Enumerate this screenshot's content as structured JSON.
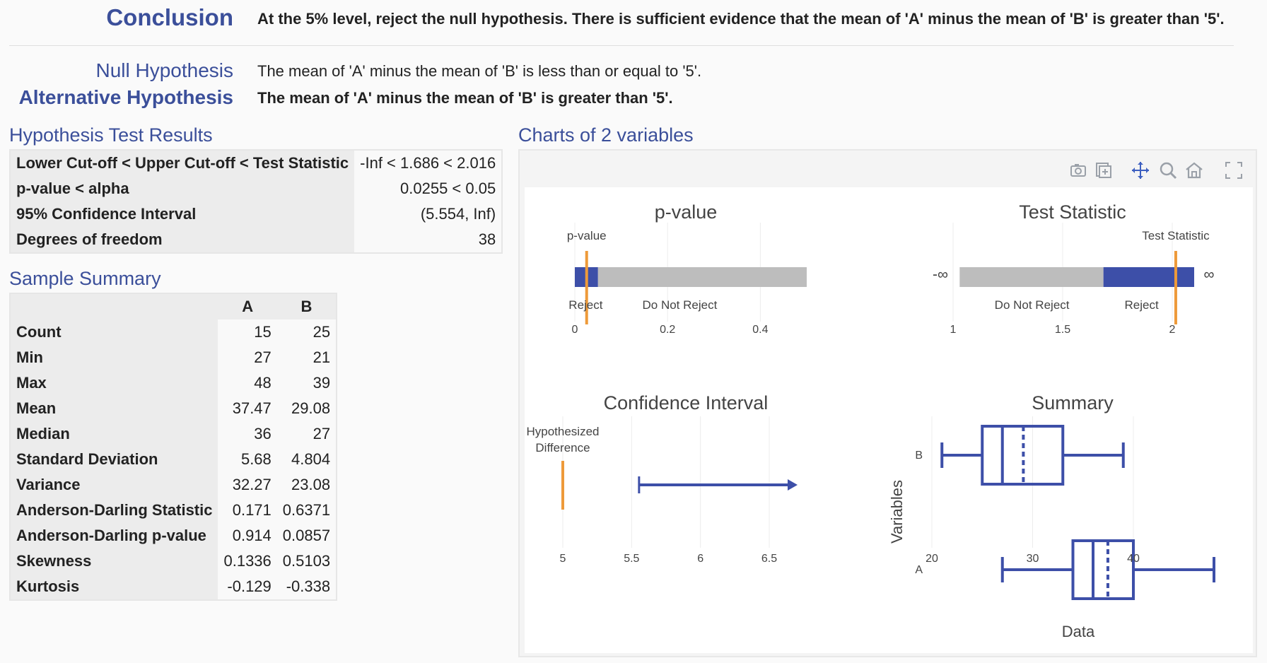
{
  "header": {
    "conclusion_label": "Conclusion",
    "conclusion_text": "At the 5% level, reject the null hypothesis. There is sufficient evidence that the mean of 'A' minus the mean of 'B' is greater than '5'.",
    "null_label": "Null Hypothesis",
    "null_text": "The mean of 'A' minus the mean of 'B' is less than or equal to '5'.",
    "alt_label": "Alternative Hypothesis",
    "alt_text": "The mean of 'A' minus the mean of 'B' is greater than '5'."
  },
  "hypothesis_results": {
    "title": "Hypothesis Test Results",
    "rows": [
      {
        "label": "Lower Cut-off < Upper Cut-off < Test Statistic",
        "value": "-Inf < 1.686 < 2.016"
      },
      {
        "label": "p-value < alpha",
        "value": "0.0255 < 0.05"
      },
      {
        "label": "95% Confidence Interval",
        "value": "(5.554, Inf)"
      },
      {
        "label": "Degrees of freedom",
        "value": "38"
      }
    ]
  },
  "sample_summary": {
    "title": "Sample Summary",
    "columns": [
      "A",
      "B"
    ],
    "rows": [
      {
        "label": "Count",
        "a": "15",
        "b": "25"
      },
      {
        "label": "Min",
        "a": "27",
        "b": "21"
      },
      {
        "label": "Max",
        "a": "48",
        "b": "39"
      },
      {
        "label": "Mean",
        "a": "37.47",
        "b": "29.08"
      },
      {
        "label": "Median",
        "a": "36",
        "b": "27"
      },
      {
        "label": "Standard Deviation",
        "a": "5.68",
        "b": "4.804"
      },
      {
        "label": "Variance",
        "a": "32.27",
        "b": "23.08"
      },
      {
        "label": "Anderson-Darling Statistic",
        "a": "0.171",
        "b": "0.6371"
      },
      {
        "label": "Anderson-Darling p-value",
        "a": "0.914",
        "b": "0.0857"
      },
      {
        "label": "Skewness",
        "a": "0.1336",
        "b": "0.5103"
      },
      {
        "label": "Kurtosis",
        "a": "-0.129",
        "b": "-0.338"
      }
    ]
  },
  "charts_panel": {
    "title": "Charts of 2 variables",
    "toolbar_icons": [
      "camera-icon",
      "copy-icon",
      "pan-icon",
      "zoom-icon",
      "home-icon",
      "fullscreen-icon"
    ]
  },
  "colors": {
    "accent": "#3b4f9a",
    "reject": "#3d4fa8",
    "do_not_reject": "#bdbdbd",
    "marker": "#ee9a3a"
  },
  "chart_data": [
    {
      "type": "bar",
      "title": "p-value",
      "annotation": "p-value",
      "region_labels": [
        "Reject",
        "Do Not Reject"
      ],
      "regions": [
        {
          "name": "Reject",
          "from": 0,
          "to": 0.05
        },
        {
          "name": "Do Not Reject",
          "from": 0.05,
          "to": 0.5
        }
      ],
      "marker": 0.0255,
      "xticks": [
        0,
        0.2,
        0.4
      ],
      "xtick_labels": [
        "0",
        "0.2",
        "0.4"
      ],
      "xlim": [
        0,
        0.5
      ]
    },
    {
      "type": "bar",
      "title": "Test Statistic",
      "annotation": "Test Statistic",
      "region_labels": [
        "Do Not Reject",
        "Reject"
      ],
      "end_labels": [
        "-∞",
        "∞"
      ],
      "regions": [
        {
          "name": "Do Not Reject",
          "from": 1.03,
          "to": 1.686
        },
        {
          "name": "Reject",
          "from": 1.686,
          "to": 2.1
        }
      ],
      "marker": 2.016,
      "xticks": [
        1,
        1.5,
        2
      ],
      "xtick_labels": [
        "1",
        "1.5",
        "2"
      ],
      "xlim": [
        0.9,
        2.2
      ]
    },
    {
      "type": "line",
      "title": "Confidence Interval",
      "annotation": "Hypothesized Difference",
      "annotation_lines": [
        "Hypothesized",
        "Difference"
      ],
      "hypothesized": 5,
      "interval_lower": 5.554,
      "interval_upper": "Inf",
      "xticks": [
        5,
        5.5,
        6,
        6.5
      ],
      "xtick_labels": [
        "5",
        "5.5",
        "6",
        "6.5"
      ],
      "xlim": [
        4.98,
        6.7
      ]
    },
    {
      "type": "box",
      "title": "Summary",
      "xlabel": "Data",
      "ylabel": "Variables",
      "categories": [
        "B",
        "A"
      ],
      "boxes": [
        {
          "name": "B",
          "min": 21,
          "q1": 25,
          "median": 27,
          "mean": 29.08,
          "q3": 33,
          "max": 39
        },
        {
          "name": "A",
          "min": 27,
          "q1": 34,
          "median": 36,
          "mean": 37.47,
          "q3": 40,
          "max": 48
        }
      ],
      "xticks": [
        20,
        30,
        40
      ],
      "xtick_labels": [
        "20",
        "30",
        "40"
      ],
      "xlim": [
        20,
        48
      ]
    }
  ]
}
